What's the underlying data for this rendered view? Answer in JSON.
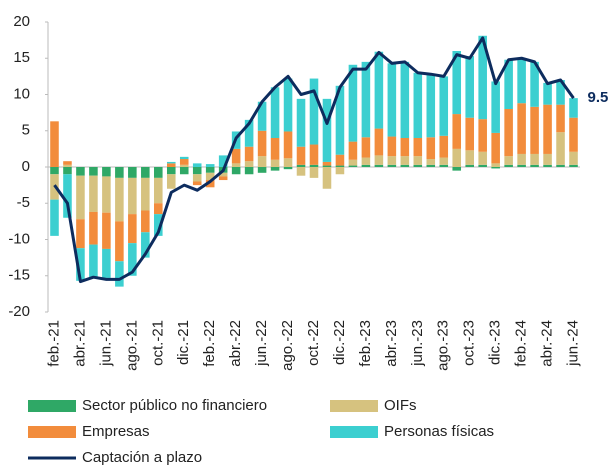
{
  "chart_data": {
    "type": "bar",
    "stacked": true,
    "categories": [
      "feb.-21",
      null,
      "abr.-21",
      null,
      "jun.-21",
      null,
      "ago.-21",
      null,
      "oct.-21",
      null,
      "dic.-21",
      null,
      "feb.-22",
      null,
      "abr.-22",
      null,
      "jun.-22",
      null,
      "ago.-22",
      null,
      "oct.-22",
      null,
      "dic.-22",
      null,
      "feb.-23",
      null,
      "abr.-23",
      null,
      "jun.-23",
      null,
      "ago.-23",
      null,
      "oct.-23",
      null,
      "dic.-23",
      null,
      "feb.-24",
      null,
      "abr.-24",
      null,
      "jun.-24"
    ],
    "ylim": [
      -20,
      20
    ],
    "yticks": [
      -20,
      -15,
      -10,
      -5,
      0,
      5,
      10,
      15,
      20
    ],
    "grid": false,
    "series": [
      {
        "name": "Sector público no financiero",
        "color": "#2fa866",
        "values": [
          -1,
          -1,
          -1.2,
          -1.2,
          -1.3,
          -1.5,
          -1.5,
          -1.5,
          -1.5,
          -1,
          -1,
          -1,
          -0.8,
          -0.8,
          -1,
          -1,
          -0.8,
          -0.5,
          -0.3,
          0.3,
          0.3,
          0.2,
          0.2,
          0.2,
          0.3,
          0.3,
          0.3,
          0.3,
          0.3,
          0.3,
          0.3,
          -0.5,
          0.3,
          0.3,
          -0.2,
          0.3,
          0.3,
          0.3,
          0.3,
          0.3,
          0.3
        ]
      },
      {
        "name": "OIFs",
        "color": "#d6c27f",
        "values": [
          -3.5,
          0.3,
          -6,
          -5,
          -5,
          -6,
          -5,
          -4.5,
          -3.5,
          -2,
          0.3,
          -1,
          -1,
          -0.5,
          0.5,
          0.8,
          1.5,
          1,
          1.2,
          -1.2,
          -1.5,
          -3,
          -1,
          0.8,
          1,
          1.3,
          1.2,
          1.2,
          1.2,
          0.8,
          1,
          2.5,
          2,
          1.8,
          0.5,
          1.2,
          1.5,
          1.5,
          1.5,
          4.5,
          1.8
        ]
      },
      {
        "name": "Empresas",
        "color": "#f28c3c",
        "values": [
          6.3,
          0.5,
          -4,
          -4.5,
          -5,
          -5.5,
          -4,
          -3,
          -1.5,
          0.5,
          0.8,
          -0.5,
          -1,
          -0.5,
          2,
          2,
          3.5,
          3,
          3.7,
          2.5,
          2.8,
          0.5,
          1.5,
          2.5,
          2.8,
          3.7,
          2.7,
          2.5,
          2.5,
          3,
          3,
          4.8,
          4.5,
          4.5,
          4.2,
          6.5,
          7,
          6.5,
          6.8,
          3.8,
          4.7
        ]
      },
      {
        "name": "Personas físicas",
        "color": "#3ccfd0",
        "values": [
          -5,
          -6,
          -4.5,
          -4.5,
          -4,
          -3.5,
          -4.5,
          -3.5,
          -3,
          0.2,
          0.3,
          0.5,
          0.4,
          1.6,
          2.4,
          3.7,
          4,
          7,
          7.3,
          6.6,
          9.1,
          8.7,
          9.5,
          10.6,
          10.4,
          10.6,
          10.1,
          10.5,
          9,
          8.7,
          8.2,
          8.7,
          8.5,
          11.5,
          7.1,
          6.8,
          6.2,
          6.2,
          3,
          3.4,
          2.7
        ]
      },
      {
        "name": "Captación a plazo",
        "type": "line",
        "color": "#0d2c5e",
        "values": [
          -2.5,
          -5,
          -15.8,
          -15.2,
          -15.5,
          -15.5,
          -14.5,
          -12,
          -9,
          -3.5,
          -2.5,
          -3.2,
          -2,
          -0.5,
          4,
          6,
          9,
          11,
          12.5,
          10,
          10.5,
          6,
          11,
          13.5,
          13.5,
          15.8,
          14.3,
          14.5,
          13,
          12.8,
          12.5,
          15.5,
          15,
          17.8,
          11.5,
          14.8,
          15,
          14.5,
          11.5,
          12,
          9.5
        ]
      }
    ]
  }
}
